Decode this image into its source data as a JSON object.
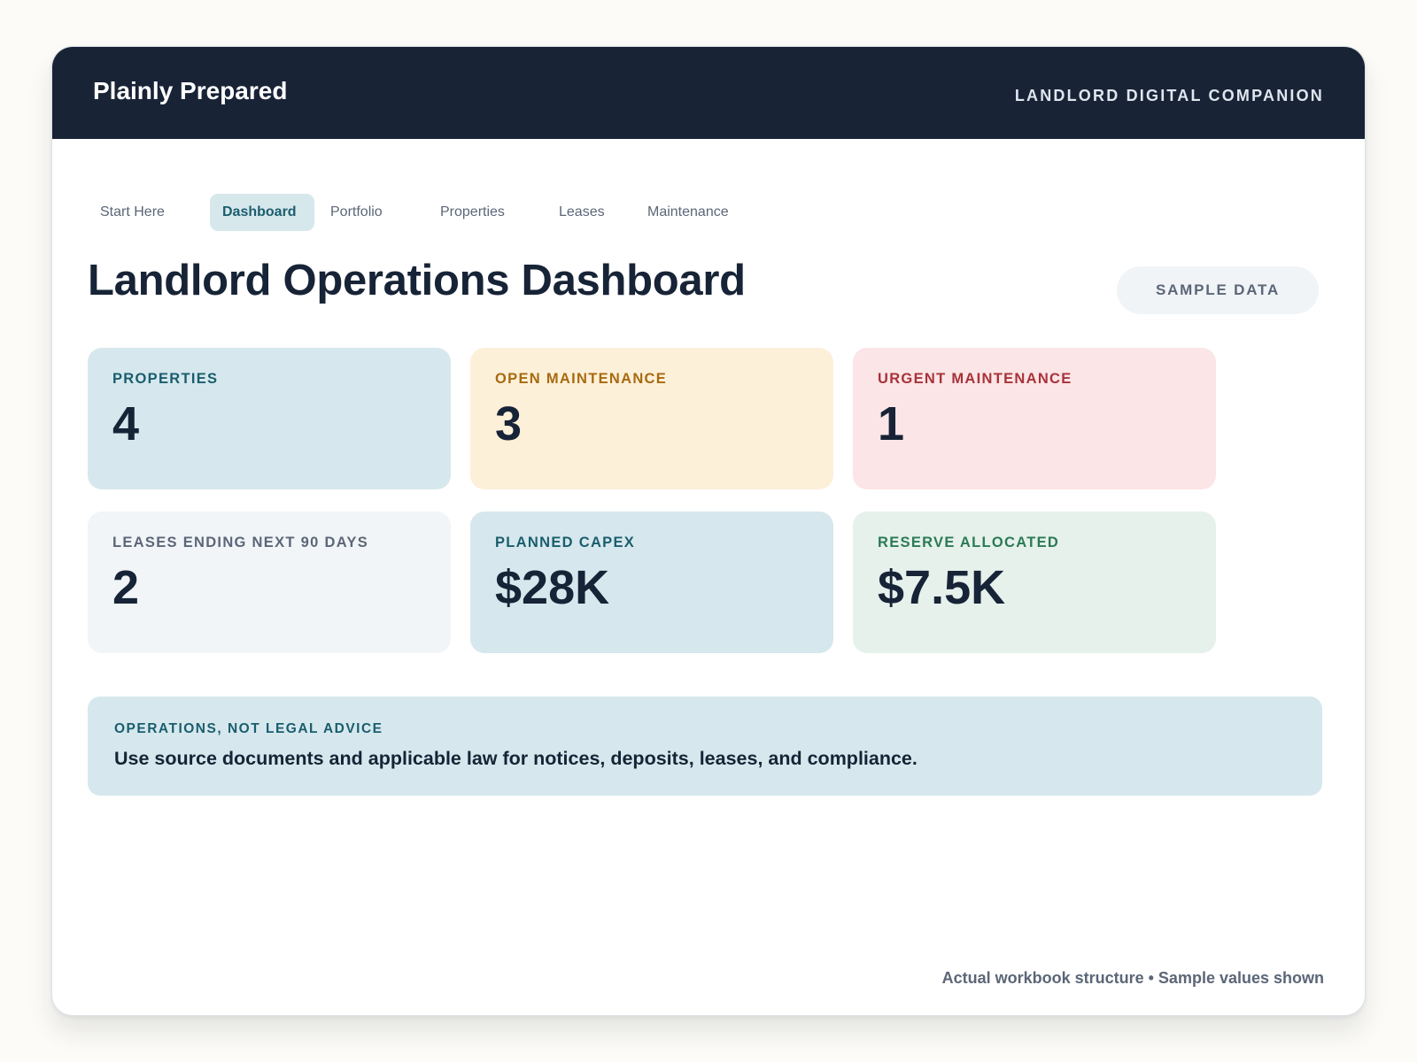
{
  "header": {
    "brand": "Plainly Prepared",
    "companion": "LANDLORD DIGITAL COMPANION"
  },
  "tabs": [
    {
      "label": "Start Here",
      "active": false
    },
    {
      "label": "Dashboard",
      "active": true
    },
    {
      "label": "Portfolio",
      "active": false
    },
    {
      "label": "Properties",
      "active": false
    },
    {
      "label": "Leases",
      "active": false
    },
    {
      "label": "Maintenance",
      "active": false
    }
  ],
  "main": {
    "title": "Landlord Operations Dashboard",
    "badge": "SAMPLE DATA"
  },
  "cards": [
    {
      "label": "PROPERTIES",
      "value": "4",
      "tone": "blue"
    },
    {
      "label": "OPEN MAINTENANCE",
      "value": "3",
      "tone": "amber"
    },
    {
      "label": "URGENT MAINTENANCE",
      "value": "1",
      "tone": "red"
    },
    {
      "label": "LEASES ENDING NEXT 90 DAYS",
      "value": "2",
      "tone": "gray"
    },
    {
      "label": "PLANNED CAPEX",
      "value": "$28K",
      "tone": "blue"
    },
    {
      "label": "RESERVE ALLOCATED",
      "value": "$7.5K",
      "tone": "green"
    }
  ],
  "notice": {
    "label": "OPERATIONS, NOT LEGAL ADVICE",
    "text": "Use source documents and applicable law for notices, deposits, leases, and compliance."
  },
  "footer": {
    "text": "Actual workbook structure • Sample values shown"
  },
  "colors": {
    "header_bg": "#182336",
    "accent_teal": "#1a5d6e",
    "blue_card": "#d6e8ed",
    "amber_card": "#fdf0d9",
    "red_card": "#fbe5e6",
    "gray_card": "#f1f5f8",
    "green_card": "#e6f1ec"
  }
}
